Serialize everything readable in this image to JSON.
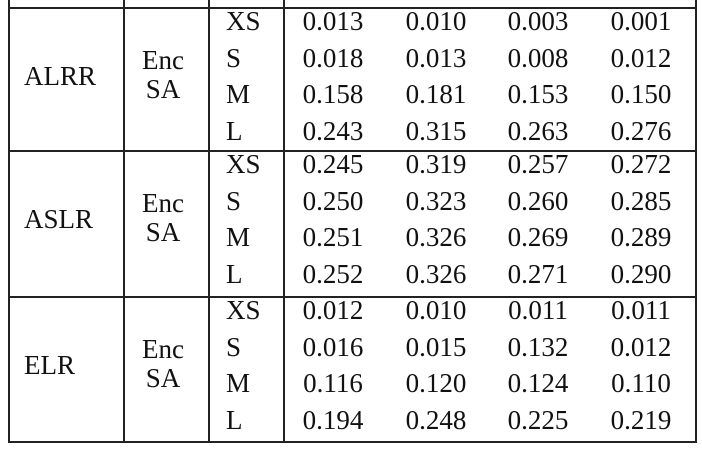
{
  "table": {
    "groups": [
      {
        "method": "ALRR",
        "setting": [
          "Enc",
          "SA"
        ],
        "rows": [
          {
            "size": "XS",
            "values": [
              "0.013",
              "0.010",
              "0.003",
              "0.001"
            ]
          },
          {
            "size": "S",
            "values": [
              "0.018",
              "0.013",
              "0.008",
              "0.012"
            ]
          },
          {
            "size": "M",
            "values": [
              "0.158",
              "0.181",
              "0.153",
              "0.150"
            ]
          },
          {
            "size": "L",
            "values": [
              "0.243",
              "0.315",
              "0.263",
              "0.276"
            ]
          }
        ]
      },
      {
        "method": "ASLR",
        "setting": [
          "Enc",
          "SA"
        ],
        "rows": [
          {
            "size": "XS",
            "values": [
              "0.245",
              "0.319",
              "0.257",
              "0.272"
            ]
          },
          {
            "size": "S",
            "values": [
              "0.250",
              "0.323",
              "0.260",
              "0.285"
            ]
          },
          {
            "size": "M",
            "values": [
              "0.251",
              "0.326",
              "0.269",
              "0.289"
            ]
          },
          {
            "size": "L",
            "values": [
              "0.252",
              "0.326",
              "0.271",
              "0.290"
            ]
          }
        ]
      },
      {
        "method": "ELR",
        "setting": [
          "Enc",
          "SA"
        ],
        "rows": [
          {
            "size": "XS",
            "values": [
              "0.012",
              "0.010",
              "0.011",
              "0.011"
            ]
          },
          {
            "size": "S",
            "values": [
              "0.016",
              "0.015",
              "0.132",
              "0.012"
            ]
          },
          {
            "size": "M",
            "values": [
              "0.116",
              "0.120",
              "0.124",
              "0.110"
            ]
          },
          {
            "size": "L",
            "values": [
              "0.194",
              "0.248",
              "0.225",
              "0.219"
            ]
          }
        ]
      }
    ]
  }
}
